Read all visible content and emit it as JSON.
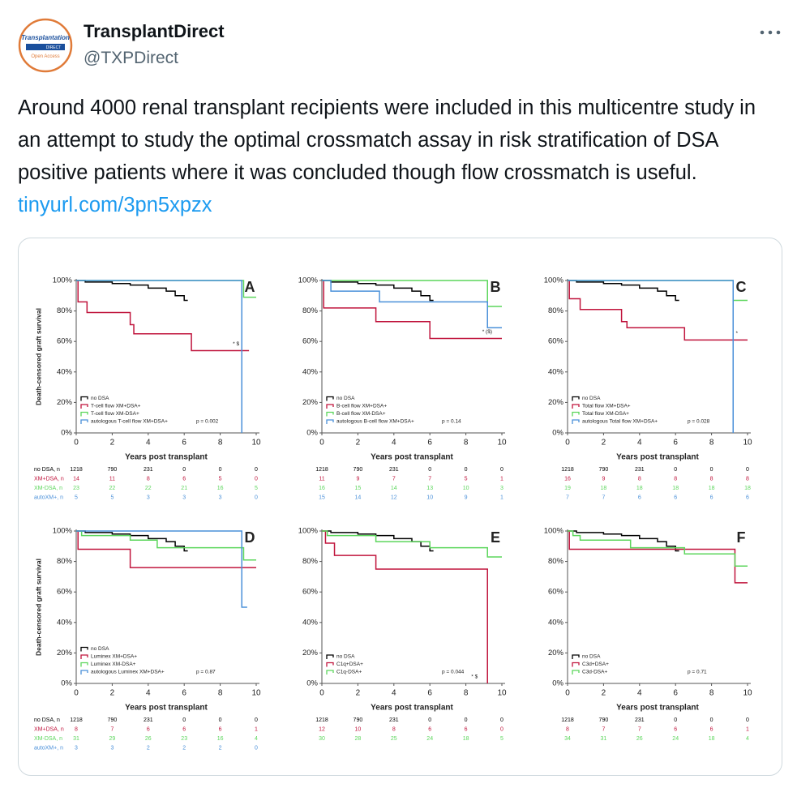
{
  "tweet": {
    "avatar": {
      "title": "Transplantation",
      "subtitle": "DIRECT",
      "badge": "Open Access"
    },
    "name": "TransplantDirect",
    "handle": "@TXPDirect",
    "text": "Around 4000 renal transplant recipients were included in this multicentre study in an attempt to study the optimal crossmatch assay in risk stratification of DSA positive patients where it was concluded though flow crossmatch is useful.",
    "link": "tinyurl.com/3pn5xpzx"
  },
  "chart_data": [
    {
      "type": "line",
      "panel": "A",
      "ylabel": "Death-censored graft survival",
      "xlabel": "Years post transplant",
      "xlim": [
        0,
        10
      ],
      "ylim": [
        0,
        100
      ],
      "xticks": [
        0,
        2,
        4,
        6,
        8,
        10
      ],
      "yticks": [
        {
          "value": 0,
          "label": "0%"
        },
        {
          "value": 20,
          "label": "20%"
        },
        {
          "value": 40,
          "label": "40%"
        },
        {
          "value": 60,
          "label": "60%"
        },
        {
          "value": 80,
          "label": "80%"
        },
        {
          "value": 100,
          "label": "100%"
        }
      ],
      "series": [
        {
          "name": "no DSA",
          "color": "#000000",
          "x": [
            0,
            0.5,
            1,
            2,
            3,
            4,
            5,
            5.5,
            6,
            6.2
          ],
          "values": [
            100,
            99,
            99,
            98,
            97,
            95,
            93,
            90,
            87,
            87
          ]
        },
        {
          "name": "T-cell flow XM+DSA+",
          "color": "#c0143c",
          "x": [
            0,
            0.1,
            0.6,
            3,
            3.2,
            6.4,
            9.6
          ],
          "values": [
            100,
            86,
            79,
            71,
            65,
            54,
            54
          ]
        },
        {
          "name": "T-cell flow XM-DSA+",
          "color": "#5cd65c",
          "x": [
            0,
            9.3,
            10
          ],
          "values": [
            100,
            89,
            89
          ]
        },
        {
          "name": "autologous T-cell flow XM+DSA+",
          "color": "#4a90d9",
          "x": [
            0,
            9.2
          ],
          "values": [
            100,
            0
          ]
        }
      ],
      "p_value": "p = 0.002",
      "annotation": "* $",
      "risk_table": {
        "labels": [
          "no DSA, n",
          "XM+DSA, n",
          "XM-DSA, n",
          "autoXM+, n"
        ],
        "rows": [
          [
            1218,
            790,
            231,
            0,
            0,
            0
          ],
          [
            14,
            11,
            8,
            6,
            5,
            0
          ],
          [
            23,
            22,
            22,
            21,
            16,
            5
          ],
          [
            5,
            5,
            3,
            3,
            3,
            0
          ]
        ]
      }
    },
    {
      "type": "line",
      "panel": "B",
      "xlabel": "Years post transplant",
      "xlim": [
        0,
        10
      ],
      "ylim": [
        0,
        100
      ],
      "xticks": [
        0,
        2,
        4,
        6,
        8,
        10
      ],
      "yticks": [
        {
          "value": 0,
          "label": "0%"
        },
        {
          "value": 20,
          "label": "20%"
        },
        {
          "value": 40,
          "label": "40%"
        },
        {
          "value": 60,
          "label": "60%"
        },
        {
          "value": 80,
          "label": "80%"
        },
        {
          "value": 100,
          "label": "100%"
        }
      ],
      "series": [
        {
          "name": "no DSA",
          "color": "#000000",
          "x": [
            0,
            0.5,
            1,
            2,
            3,
            4,
            5,
            5.5,
            6,
            6.2
          ],
          "values": [
            100,
            99,
            99,
            98,
            97,
            95,
            93,
            90,
            87,
            87
          ]
        },
        {
          "name": "B-cell flow XM+DSA+",
          "color": "#c0143c",
          "x": [
            0,
            0.1,
            3,
            6,
            10
          ],
          "values": [
            100,
            82,
            73,
            62,
            62
          ]
        },
        {
          "name": "B-cell flow XM-DSA+",
          "color": "#5cd65c",
          "x": [
            0,
            9.2,
            10
          ],
          "values": [
            100,
            83,
            83
          ]
        },
        {
          "name": "autologous B-cell flow XM+DSA+",
          "color": "#4a90d9",
          "x": [
            0,
            0.5,
            3.2,
            9.2,
            10
          ],
          "values": [
            100,
            93,
            86,
            69,
            69
          ]
        }
      ],
      "p_value": "p = 0.14",
      "annotation": "* ($)",
      "risk_table": {
        "rows": [
          [
            1218,
            790,
            231,
            0,
            0,
            0
          ],
          [
            11,
            9,
            7,
            7,
            5,
            1
          ],
          [
            16,
            15,
            14,
            13,
            10,
            3
          ],
          [
            15,
            14,
            12,
            10,
            9,
            1
          ]
        ]
      }
    },
    {
      "type": "line",
      "panel": "C",
      "xlabel": "Years post transplant",
      "xlim": [
        0,
        10
      ],
      "ylim": [
        0,
        100
      ],
      "xticks": [
        0,
        2,
        4,
        6,
        8,
        10
      ],
      "yticks": [
        {
          "value": 0,
          "label": "0%"
        },
        {
          "value": 20,
          "label": "20%"
        },
        {
          "value": 40,
          "label": "40%"
        },
        {
          "value": 60,
          "label": "60%"
        },
        {
          "value": 80,
          "label": "80%"
        },
        {
          "value": 100,
          "label": "100%"
        }
      ],
      "series": [
        {
          "name": "no DSA",
          "color": "#000000",
          "x": [
            0,
            0.5,
            1,
            2,
            3,
            4,
            5,
            5.5,
            6,
            6.2
          ],
          "values": [
            100,
            99,
            99,
            98,
            97,
            95,
            93,
            90,
            87,
            87
          ]
        },
        {
          "name": "Total flow XM+DSA+",
          "color": "#c0143c",
          "x": [
            0,
            0.1,
            0.7,
            3,
            3.3,
            6.5,
            10
          ],
          "values": [
            100,
            88,
            81,
            73,
            69,
            61,
            61
          ]
        },
        {
          "name": "Total flow XM-DSA+",
          "color": "#5cd65c",
          "x": [
            0,
            9.2,
            10
          ],
          "values": [
            100,
            87,
            87
          ]
        },
        {
          "name": "autologous Total flow XM+DSA+",
          "color": "#4a90d9",
          "x": [
            0,
            9.2
          ],
          "values": [
            100,
            0
          ]
        }
      ],
      "p_value": "p = 0.028",
      "annotation": "*",
      "risk_table": {
        "rows": [
          [
            1218,
            790,
            231,
            0,
            0,
            0
          ],
          [
            16,
            9,
            8,
            8,
            8,
            8
          ],
          [
            19,
            18,
            18,
            18,
            18,
            18
          ],
          [
            7,
            7,
            6,
            6,
            6,
            6
          ]
        ]
      }
    },
    {
      "type": "line",
      "panel": "D",
      "ylabel": "Death-censored graft survival",
      "xlabel": "Years post transplant",
      "xlim": [
        0,
        10
      ],
      "ylim": [
        0,
        100
      ],
      "xticks": [
        0,
        2,
        4,
        6,
        8,
        10
      ],
      "yticks": [
        {
          "value": 0,
          "label": "0%"
        },
        {
          "value": 20,
          "label": "20%"
        },
        {
          "value": 40,
          "label": "40%"
        },
        {
          "value": 60,
          "label": "60%"
        },
        {
          "value": 80,
          "label": "80%"
        },
        {
          "value": 100,
          "label": "100%"
        }
      ],
      "series": [
        {
          "name": "no DSA",
          "color": "#000000",
          "x": [
            0,
            0.5,
            1,
            2,
            3,
            4,
            5,
            5.5,
            6,
            6.2
          ],
          "values": [
            100,
            99,
            99,
            98,
            97,
            95,
            93,
            90,
            87,
            87
          ]
        },
        {
          "name": "Luminex XM+DSA+",
          "color": "#c0143c",
          "x": [
            0,
            0.1,
            3,
            10
          ],
          "values": [
            100,
            88,
            76,
            76
          ]
        },
        {
          "name": "Luminex XM-DSA+",
          "color": "#5cd65c",
          "x": [
            0,
            0.3,
            3,
            4.5,
            9.3,
            10
          ],
          "values": [
            100,
            97,
            94,
            89,
            81,
            81
          ]
        },
        {
          "name": "autologous Luminex XM+DSA+",
          "color": "#4a90d9",
          "x": [
            0,
            9.2,
            9.5
          ],
          "values": [
            100,
            50,
            50
          ]
        }
      ],
      "p_value": "p = 0.87",
      "risk_table": {
        "labels": [
          "no DSA, n",
          "XM+DSA, n",
          "XM-DSA, n",
          "autoXM+, n"
        ],
        "rows": [
          [
            1218,
            790,
            231,
            0,
            0,
            0
          ],
          [
            8,
            7,
            6,
            6,
            6,
            1
          ],
          [
            31,
            29,
            26,
            23,
            16,
            4
          ],
          [
            3,
            3,
            2,
            2,
            2,
            0
          ]
        ]
      }
    },
    {
      "type": "line",
      "panel": "E",
      "xlabel": "Years post transplant",
      "xlim": [
        0,
        10
      ],
      "ylim": [
        0,
        100
      ],
      "xticks": [
        0,
        2,
        4,
        6,
        8,
        10
      ],
      "yticks": [
        {
          "value": 0,
          "label": "0%"
        },
        {
          "value": 20,
          "label": "20%"
        },
        {
          "value": 40,
          "label": "40%"
        },
        {
          "value": 60,
          "label": "60%"
        },
        {
          "value": 80,
          "label": "80%"
        },
        {
          "value": 100,
          "label": "100%"
        }
      ],
      "series": [
        {
          "name": "no DSA",
          "color": "#000000",
          "x": [
            0,
            0.5,
            1,
            2,
            3,
            4,
            5,
            5.5,
            6,
            6.2
          ],
          "values": [
            100,
            99,
            99,
            98,
            97,
            95,
            93,
            90,
            87,
            87
          ]
        },
        {
          "name": "C1q+DSA+",
          "color": "#c0143c",
          "x": [
            0,
            0.2,
            0.7,
            3,
            9.2
          ],
          "values": [
            100,
            92,
            84,
            75,
            0
          ]
        },
        {
          "name": "C1q-DSA+",
          "color": "#5cd65c",
          "x": [
            0,
            0.3,
            3,
            6,
            9.2,
            10
          ],
          "values": [
            100,
            97,
            93,
            89,
            83,
            83
          ]
        }
      ],
      "p_value": "p = 0.044",
      "annotation": "* $",
      "risk_table": {
        "rows": [
          [
            1218,
            790,
            231,
            0,
            0,
            0
          ],
          [
            12,
            10,
            8,
            6,
            6,
            0
          ],
          [
            30,
            28,
            25,
            24,
            18,
            5
          ]
        ]
      }
    },
    {
      "type": "line",
      "panel": "F",
      "xlabel": "Years post transplant",
      "xlim": [
        0,
        10
      ],
      "ylim": [
        0,
        100
      ],
      "xticks": [
        0,
        2,
        4,
        6,
        8,
        10
      ],
      "yticks": [
        {
          "value": 0,
          "label": "0%"
        },
        {
          "value": 20,
          "label": "20%"
        },
        {
          "value": 40,
          "label": "40%"
        },
        {
          "value": 60,
          "label": "60%"
        },
        {
          "value": 80,
          "label": "80%"
        },
        {
          "value": 100,
          "label": "100%"
        }
      ],
      "series": [
        {
          "name": "no DSA",
          "color": "#000000",
          "x": [
            0,
            0.5,
            1,
            2,
            3,
            4,
            5,
            5.5,
            6,
            6.2
          ],
          "values": [
            100,
            99,
            99,
            98,
            97,
            95,
            93,
            90,
            87,
            87
          ]
        },
        {
          "name": "C3d+DSA+",
          "color": "#c0143c",
          "x": [
            0,
            0.1,
            9.3,
            10
          ],
          "values": [
            100,
            88,
            66,
            66
          ]
        },
        {
          "name": "C3d-DSA+",
          "color": "#5cd65c",
          "x": [
            0,
            0.3,
            0.7,
            3.5,
            6.5,
            9.3,
            10
          ],
          "values": [
            100,
            97,
            94,
            89,
            85,
            77,
            77
          ]
        }
      ],
      "p_value": "p = 0.71",
      "risk_table": {
        "rows": [
          [
            1218,
            790,
            231,
            0,
            0,
            0
          ],
          [
            8,
            7,
            7,
            6,
            6,
            1
          ],
          [
            34,
            31,
            26,
            24,
            18,
            4
          ]
        ]
      }
    }
  ]
}
